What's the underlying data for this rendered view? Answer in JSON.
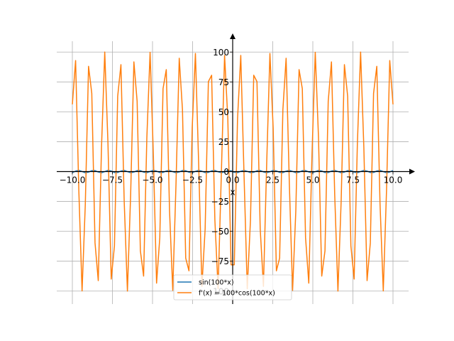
{
  "chart_data": {
    "type": "line",
    "xlabel": "x",
    "xlim": [
      -10,
      10
    ],
    "ylim": [
      -110,
      110
    ],
    "x_ticks": [
      -10.0,
      -7.5,
      -5.0,
      -2.5,
      0.0,
      2.5,
      5.0,
      7.5,
      10.0
    ],
    "x_tick_labels": [
      "−10.0",
      "−7.5",
      "−5.0",
      "−2.5",
      "0.0",
      "2.5",
      "5.0",
      "7.5",
      "10.0"
    ],
    "y_ticks": [
      -100,
      -75,
      -50,
      -25,
      0,
      25,
      50,
      75,
      100
    ],
    "y_tick_labels": [
      "−100",
      "−75",
      "−50",
      "−25",
      "0",
      "25",
      "50",
      "75",
      "100"
    ],
    "grid": true,
    "legend_position": "bottom-center",
    "sample_x": {
      "start": -10,
      "stop": 10,
      "count": 100
    },
    "series": [
      {
        "name": "sin(100*x)",
        "expression": "sin(100*x)",
        "color": "#1f77b4"
      },
      {
        "name": "f'(x) = 100*cos(100*x)",
        "expression": "100*cos(100*x)",
        "color": "#ff7f0e"
      }
    ]
  }
}
